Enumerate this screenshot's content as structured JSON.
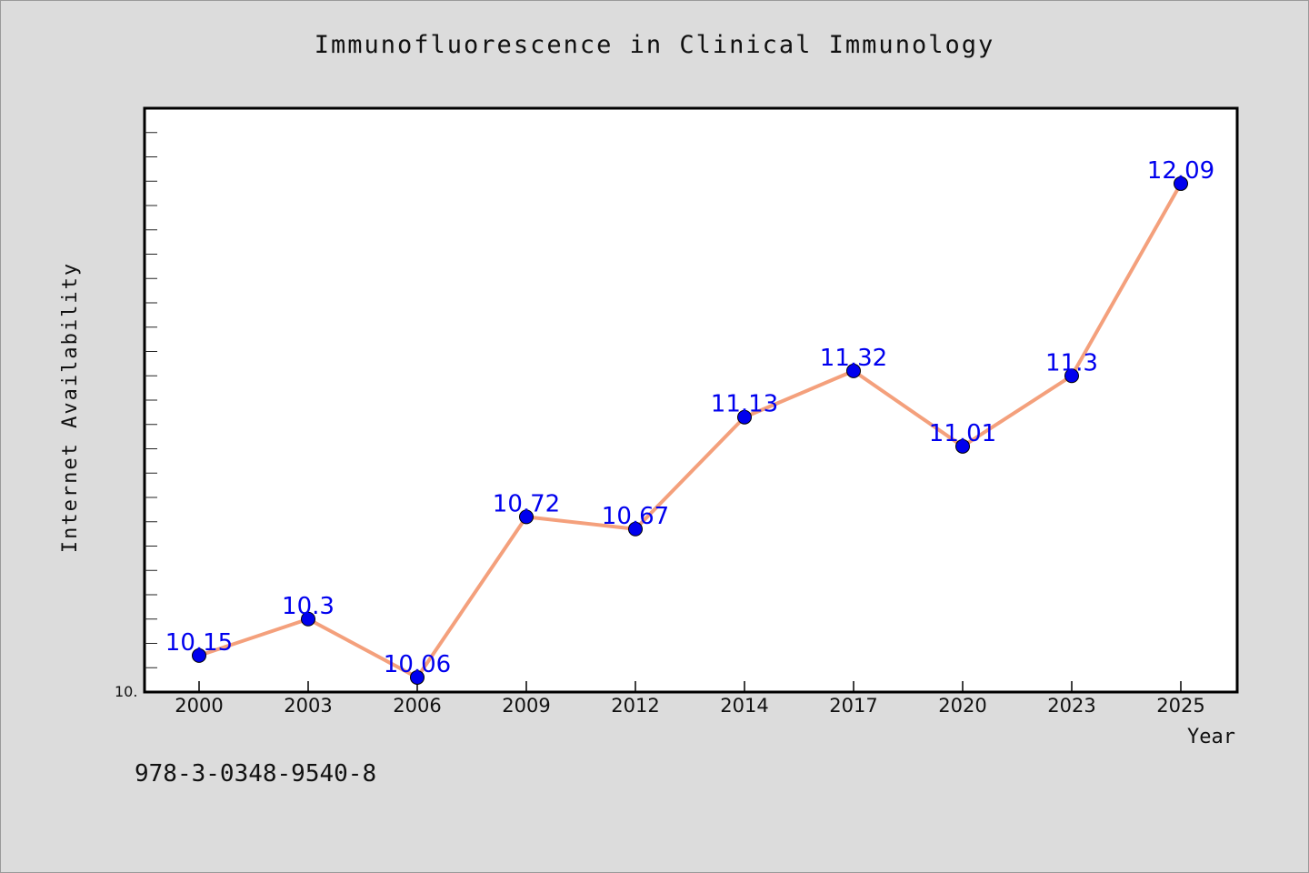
{
  "chart_data": {
    "type": "line",
    "title": "Immunofluorescence in Clinical Immunology",
    "xlabel": "Year",
    "ylabel": "Internet Availability",
    "categories": [
      "2000",
      "2003",
      "2006",
      "2009",
      "2012",
      "2014",
      "2017",
      "2020",
      "2023",
      "2025"
    ],
    "series": [
      {
        "values": [
          10.15,
          10.3,
          10.06,
          10.72,
          10.67,
          11.13,
          11.32,
          11.01,
          11.3,
          12.09
        ],
        "point_labels": [
          "10.15",
          "10.3",
          "10.06",
          "10.72",
          "10.67",
          "11.13",
          "11.32",
          "11.01",
          "11.3",
          "12.09"
        ]
      }
    ],
    "ytick_label": "10.",
    "ylim": [
      10.0,
      12.4
    ],
    "grid": false,
    "colors": {
      "line": "#f4a07c",
      "marker": "#0000ee",
      "label": "#0000ee"
    }
  },
  "footer": {
    "isbn": "978-3-0348-9540-8"
  }
}
